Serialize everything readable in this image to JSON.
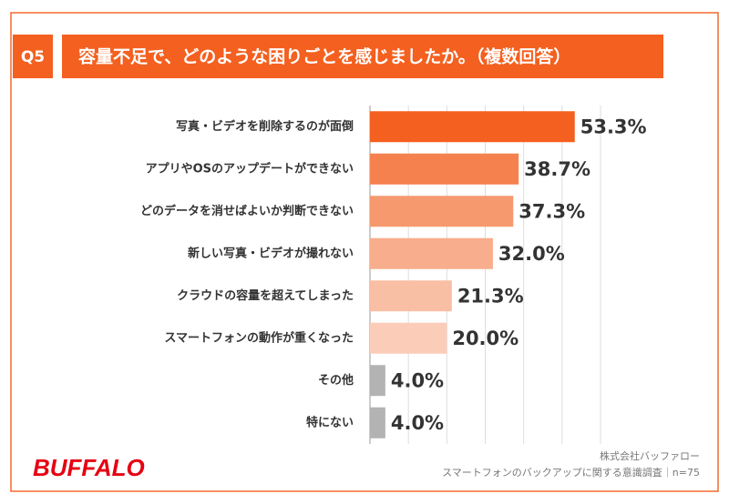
{
  "chart_data": {
    "type": "hbar",
    "question_number": "Q5",
    "title": "容量不足で、どのような困りごとを感じましたか。（複数回答）",
    "categories": [
      "写真・ビデオを削除するのが面倒",
      "アプリやOSのアップデートができない",
      "どのデータを消せばよいか判断できない",
      "新しい写真・ビデオが撮れない",
      "クラウドの容量を超えてしまった",
      "スマートフォンの動作が重くなった",
      "その他",
      "特にない"
    ],
    "values": [
      53.3,
      38.7,
      37.3,
      32.0,
      21.3,
      20.0,
      4.0,
      4.0
    ],
    "value_labels": [
      "53.3%",
      "38.7%",
      "37.3%",
      "32.0%",
      "21.3%",
      "20.0%",
      "4.0%",
      "4.0%"
    ],
    "colors": [
      "#f4601f",
      "#f5814f",
      "#f7996f",
      "#f8ad8c",
      "#f9bfa5",
      "#fbcdb9",
      "#b3b3b3",
      "#b3b3b3"
    ],
    "xlim": [
      0,
      60
    ],
    "xticks": [
      0,
      10,
      20,
      30,
      40,
      50,
      60
    ],
    "grid": true,
    "brand": "BUFFALO",
    "source": [
      "株式会社バッファロー",
      "スマートフォンのバックアップに関する意識調査｜n=75"
    ]
  }
}
